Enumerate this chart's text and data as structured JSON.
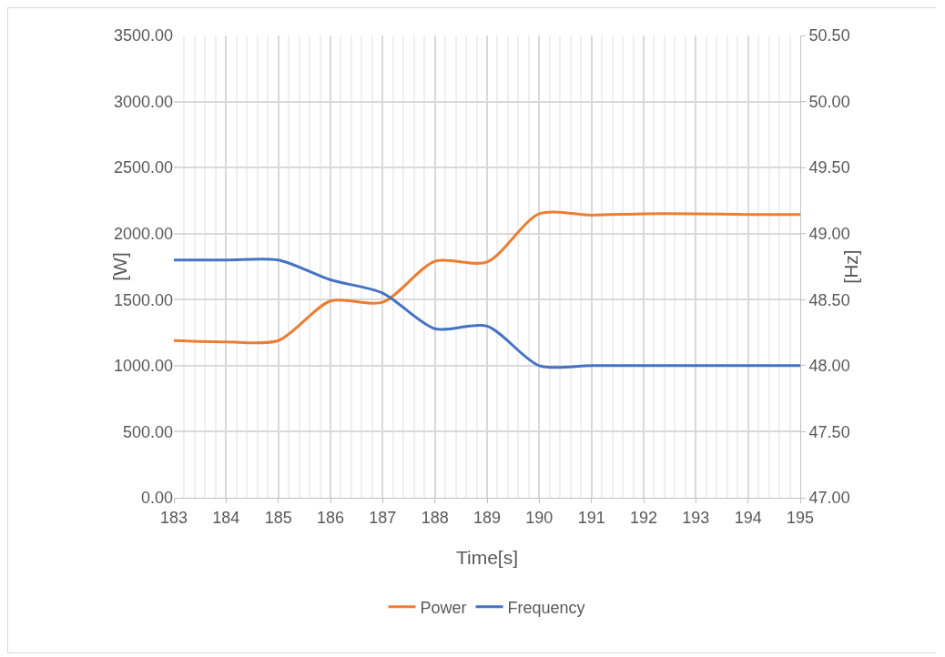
{
  "chart_data": {
    "type": "line",
    "xlabel": "Time[s]",
    "ylabel": "[W]",
    "y2label": "[Hz]",
    "x": [
      183,
      184,
      185,
      186,
      187,
      188,
      189,
      190,
      191,
      192,
      193,
      194,
      195
    ],
    "series": [
      {
        "name": "Power",
        "color": "#ed7d31",
        "values": [
          1190,
          1180,
          1190,
          1490,
          1480,
          1790,
          1785,
          2150,
          2140,
          2150,
          2150,
          2145,
          2145
        ]
      },
      {
        "name": "Frequency",
        "color": "#4472c4",
        "axis": "y2",
        "values": [
          48.8,
          48.8,
          48.8,
          48.65,
          48.55,
          48.28,
          48.3,
          48.0,
          48.0,
          48.0,
          48.0,
          48.0,
          48.0
        ]
      }
    ],
    "xlim": [
      183,
      195
    ],
    "xticks": [
      183,
      184,
      185,
      186,
      187,
      188,
      189,
      190,
      191,
      192,
      193,
      194,
      195
    ],
    "ylim": [
      0,
      3500
    ],
    "yticks": [
      {
        "value": 0,
        "label": "0.00"
      },
      {
        "value": 500,
        "label": "500.00"
      },
      {
        "value": 1000,
        "label": "1000.00"
      },
      {
        "value": 1500,
        "label": "1500.00"
      },
      {
        "value": 2000,
        "label": "2000.00"
      },
      {
        "value": 2500,
        "label": "2500.00"
      },
      {
        "value": 3000,
        "label": "3000.00"
      },
      {
        "value": 3500,
        "label": "3500.00"
      }
    ],
    "y2lim": [
      47,
      50.5
    ],
    "y2ticks": [
      {
        "value": 47,
        "label": "47.00"
      },
      {
        "value": 47.5,
        "label": "47.50"
      },
      {
        "value": 48,
        "label": "48.00"
      },
      {
        "value": 48.5,
        "label": "48.50"
      },
      {
        "value": 49,
        "label": "49.00"
      },
      {
        "value": 49.5,
        "label": "49.50"
      },
      {
        "value": 50,
        "label": "50.00"
      },
      {
        "value": 50.5,
        "label": "50.50"
      }
    ],
    "grid": true,
    "legend": "bottom",
    "marker": "none",
    "line_style": "solid"
  }
}
